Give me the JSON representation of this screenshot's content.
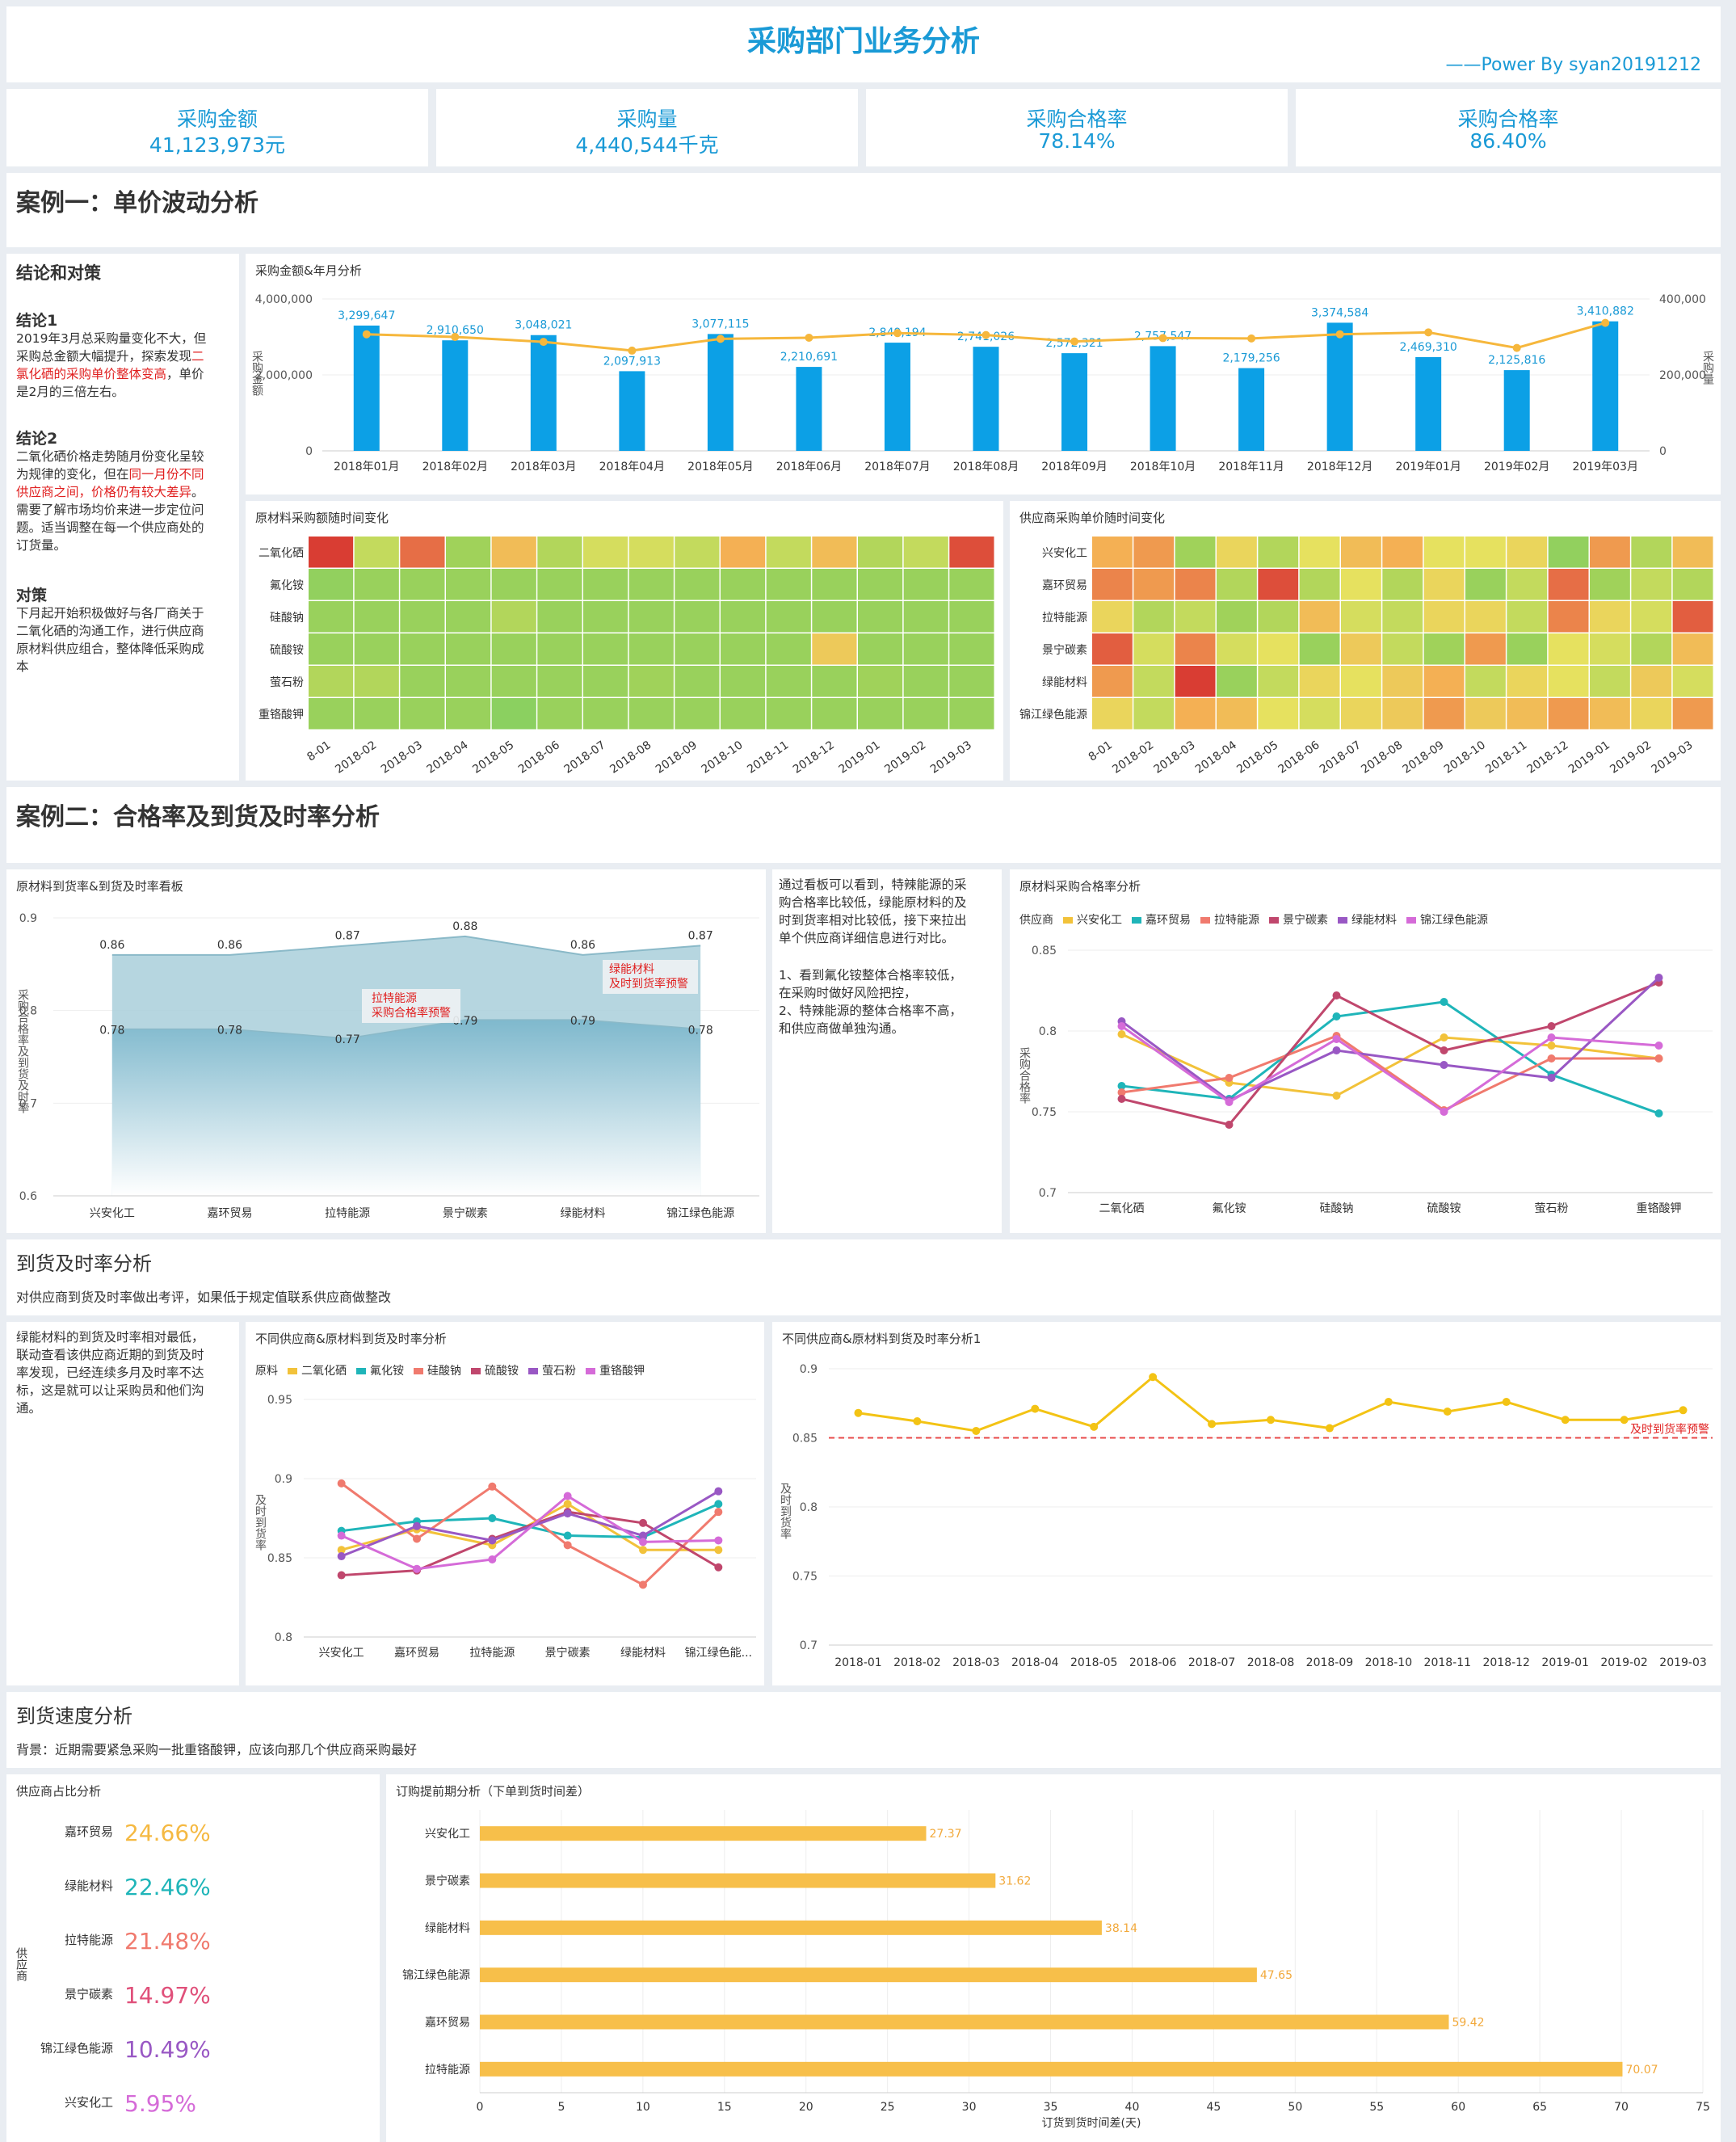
{
  "header": {
    "title": "采购部门业务分析",
    "subtitle": "——Power By syan20191212"
  },
  "kpis": [
    {
      "label": "采购金额",
      "value": "41,123,973元"
    },
    {
      "label": "采购量",
      "value": "4,440,544千克"
    },
    {
      "label": "采购合格率",
      "value": "78.14%"
    },
    {
      "label": "采购合格率",
      "value": "86.40%"
    }
  ],
  "case1": {
    "title": "案例一：单价波动分析"
  },
  "notes": {
    "title": "结论和对策",
    "c1_title": "结论1",
    "c1_a": "2019年3月总采购量变化不大，但",
    "c1_b": "采购总金额大幅提升，探索发现",
    "c1_b_red": "二",
    "c1_c_red": "氯化硒的采购单价整体变高",
    "c1_c": "，单价",
    "c1_d": "是2月的三倍左右。",
    "c2_title": "结论2",
    "c2_a": "二氧化硒价格走势随月份变化呈较",
    "c2_b": "为规律的变化，但在",
    "c2_b_red": "同一月份不同",
    "c2_c_red": "供应商之间，价格仍有较大差异",
    "c2_c": "。",
    "c2_d": "需要了解市场均价来进一步定位问",
    "c2_e": "题。适当调整在每一个供应商处的",
    "c2_f": "订货量。",
    "c3_title": "对策",
    "c3_a": "下月起开始积极做好与各厂商关于",
    "c3_b": "二氧化硒的沟通工作，进行供应商",
    "c3_c": "原材料供应组合，整体降低采购成",
    "c3_d": "本"
  },
  "chart_data": [
    {
      "id": "monthly",
      "type": "bar",
      "title": "采购金额&年月分析",
      "categories": [
        "2018年01月",
        "2018年02月",
        "2018年03月",
        "2018年04月",
        "2018年05月",
        "2018年06月",
        "2018年07月",
        "2018年08月",
        "2018年09月",
        "2018年10月",
        "2018年11月",
        "2018年12月",
        "2019年01月",
        "2019年02月",
        "2019年03月"
      ],
      "values": [
        3299647,
        2910650,
        3048021,
        2097913,
        3077115,
        2210691,
        2849194,
        2741026,
        2572321,
        2757547,
        2179256,
        3374584,
        2469310,
        2125816,
        3410882
      ],
      "value_labels": [
        "3,299,647",
        "2,910,650",
        "3,048,021",
        "2,097,913",
        "3,077,115",
        "2,210,691",
        "2,849,194",
        "2,741,026",
        "2,572,321",
        "2,757,547",
        "2,179,256",
        "3,374,584",
        "2,469,310",
        "2,125,816",
        "3,410,882"
      ],
      "line_values": [
        307000,
        300000,
        287000,
        264000,
        295000,
        298000,
        310000,
        305000,
        288000,
        297000,
        296000,
        307000,
        312000,
        271000,
        337000
      ],
      "ylabel": "采购金额",
      "y2label": "采购量",
      "yticks": [
        "4,000,000",
        "2,000,000",
        "0"
      ],
      "y2ticks": [
        "400,000",
        "200,000",
        "0"
      ],
      "ylim": [
        0,
        4000000
      ],
      "y2lim": [
        0,
        400000
      ]
    },
    {
      "id": "heat1",
      "type": "heatmap",
      "title": "原材料采购额随时间变化",
      "rows": [
        "二氧化硒",
        "氟化铵",
        "硅酸钠",
        "硫酸铵",
        "萤石粉",
        "重铬酸钾"
      ],
      "cols": [
        "2018-01",
        "2018-02",
        "2018-03",
        "2018-04",
        "2018-05",
        "2018-06",
        "2018-07",
        "2018-08",
        "2018-09",
        "2018-10",
        "2018-11",
        "2018-12",
        "2019-01",
        "2019-02",
        "2019-03"
      ],
      "xticks": [
        "8-01",
        "2018-02",
        "2018-03",
        "2018-04",
        "2018-05",
        "2018-06",
        "2018-07",
        "2018-08",
        "2018-09",
        "2018-10",
        "2018-11",
        "2018-12",
        "2019-01",
        "2019-02",
        "2019-03"
      ],
      "values": [
        [
          0.95,
          0.35,
          0.8,
          0.25,
          0.6,
          0.3,
          0.4,
          0.4,
          0.35,
          0.65,
          0.35,
          0.6,
          0.3,
          0.35,
          0.9
        ],
        [
          0.15,
          0.2,
          0.2,
          0.2,
          0.2,
          0.2,
          0.2,
          0.2,
          0.2,
          0.2,
          0.2,
          0.2,
          0.2,
          0.2,
          0.2
        ],
        [
          0.2,
          0.2,
          0.2,
          0.2,
          0.3,
          0.2,
          0.2,
          0.2,
          0.2,
          0.2,
          0.2,
          0.2,
          0.2,
          0.2,
          0.2
        ],
        [
          0.2,
          0.2,
          0.2,
          0.2,
          0.2,
          0.2,
          0.2,
          0.2,
          0.2,
          0.2,
          0.2,
          0.55,
          0.2,
          0.2,
          0.2
        ],
        [
          0.3,
          0.3,
          0.2,
          0.2,
          0.2,
          0.2,
          0.2,
          0.25,
          0.2,
          0.2,
          0.2,
          0.2,
          0.25,
          0.2,
          0.2
        ],
        [
          0.2,
          0.2,
          0.2,
          0.2,
          0.1,
          0.2,
          0.2,
          0.2,
          0.2,
          0.2,
          0.2,
          0.2,
          0.2,
          0.2,
          0.2
        ]
      ]
    },
    {
      "id": "heat2",
      "type": "heatmap",
      "title": "供应商采购单价随时间变化",
      "rows": [
        "兴安化工",
        "嘉环贸易",
        "拉特能源",
        "景宁碳素",
        "绿能材料",
        "锦江绿色能源"
      ],
      "cols": [
        "2018-01",
        "2018-02",
        "2018-03",
        "2018-04",
        "2018-05",
        "2018-06",
        "2018-07",
        "2018-08",
        "2018-09",
        "2018-10",
        "2018-11",
        "2018-12",
        "2019-01",
        "2019-02",
        "2019-03"
      ],
      "xticks": [
        "8-01",
        "2018-02",
        "2018-03",
        "2018-04",
        "2018-05",
        "2018-06",
        "2018-07",
        "2018-08",
        "2018-09",
        "2018-10",
        "2018-11",
        "2018-12",
        "2019-01",
        "2019-02",
        "2019-03"
      ],
      "values": [
        [
          0.65,
          0.7,
          0.25,
          0.5,
          0.3,
          0.45,
          0.6,
          0.65,
          0.45,
          0.45,
          0.5,
          0.15,
          0.7,
          0.3,
          0.6
        ],
        [
          0.75,
          0.7,
          0.75,
          0.3,
          0.9,
          0.3,
          0.45,
          0.3,
          0.5,
          0.2,
          0.35,
          0.8,
          0.25,
          0.35,
          0.3
        ],
        [
          0.5,
          0.3,
          0.35,
          0.25,
          0.3,
          0.6,
          0.4,
          0.35,
          0.5,
          0.5,
          0.35,
          0.75,
          0.5,
          0.4,
          0.85
        ],
        [
          0.85,
          0.4,
          0.75,
          0.4,
          0.45,
          0.2,
          0.55,
          0.35,
          0.25,
          0.7,
          0.2,
          0.45,
          0.4,
          0.3,
          0.6
        ],
        [
          0.7,
          0.35,
          0.95,
          0.2,
          0.35,
          0.5,
          0.45,
          0.55,
          0.65,
          0.35,
          0.5,
          0.45,
          0.35,
          0.55,
          0.4
        ],
        [
          0.5,
          0.35,
          0.65,
          0.6,
          0.45,
          0.4,
          0.5,
          0.55,
          0.7,
          0.55,
          0.6,
          0.7,
          0.6,
          0.5,
          0.7
        ]
      ]
    },
    {
      "id": "area",
      "type": "area",
      "title": "原材料到货率&到货及时率看板",
      "categories": [
        "兴安化工",
        "嘉环贸易",
        "拉特能源",
        "景宁碳素",
        "绿能材料",
        "锦江绿色能源"
      ],
      "series": [
        {
          "name": "到货率",
          "values": [
            0.86,
            0.86,
            0.87,
            0.88,
            0.86,
            0.87
          ],
          "labels": [
            "0.86",
            "0.86",
            "0.87",
            "0.88",
            "0.86",
            "0.87"
          ]
        },
        {
          "name": "到货及时率",
          "values": [
            0.78,
            0.78,
            0.77,
            0.79,
            0.79,
            0.78
          ],
          "labels": [
            "0.78",
            "0.78",
            "0.77",
            "0.79",
            "0.79",
            "0.78"
          ]
        }
      ],
      "yticks": [
        "0.9",
        "0.8",
        "0.7",
        "0.6"
      ],
      "ylim": [
        0.6,
        0.9
      ],
      "ylabel": "采购合格率及到货及时率",
      "annotations": [
        "拉特能源",
        "采购合格率预警",
        "绿能材料",
        "及时到货率预警"
      ]
    },
    {
      "id": "qual",
      "type": "line",
      "title": "原材料采购合格率分析",
      "legend_title": "供应商",
      "categories": [
        "二氧化硒",
        "氟化铵",
        "硅酸钠",
        "硫酸铵",
        "萤石粉",
        "重铬酸钾"
      ],
      "series": [
        {
          "name": "兴安化工",
          "color": "#f2c23a",
          "values": [
            0.798,
            0.768,
            0.76,
            0.796,
            0.791,
            0.783
          ]
        },
        {
          "name": "嘉环贸易",
          "color": "#1fb5b9",
          "values": [
            0.766,
            0.758,
            0.809,
            0.818,
            0.773,
            0.749
          ]
        },
        {
          "name": "拉特能源",
          "color": "#f07a6e",
          "values": [
            0.762,
            0.771,
            0.797,
            0.751,
            0.783,
            0.783
          ]
        },
        {
          "name": "景宁碳素",
          "color": "#c0476d",
          "values": [
            0.758,
            0.742,
            0.822,
            0.788,
            0.803,
            0.83
          ]
        },
        {
          "name": "绿能材料",
          "color": "#9958c4",
          "values": [
            0.806,
            0.757,
            0.788,
            0.779,
            0.771,
            0.833
          ]
        },
        {
          "name": "锦江绿色能源",
          "color": "#d56bd8",
          "values": [
            0.803,
            0.756,
            0.795,
            0.75,
            0.796,
            0.791
          ]
        }
      ],
      "yticks": [
        "0.85",
        "0.8",
        "0.75",
        "0.7"
      ],
      "ylim": [
        0.7,
        0.85
      ],
      "ylabel": "采购合格率"
    },
    {
      "id": "ontime",
      "type": "line",
      "title": "不同供应商&原材料到货及时率分析",
      "legend_title": "原料",
      "categories": [
        "兴安化工",
        "嘉环贸易",
        "拉特能源",
        "景宁碳素",
        "绿能材料",
        "锦江绿色能..."
      ],
      "series": [
        {
          "name": "二氧化硒",
          "color": "#f2c23a",
          "values": [
            0.855,
            0.868,
            0.858,
            0.884,
            0.855,
            0.855
          ]
        },
        {
          "name": "氟化铵",
          "color": "#1fb5b9",
          "values": [
            0.867,
            0.873,
            0.875,
            0.864,
            0.863,
            0.884
          ]
        },
        {
          "name": "硅酸钠",
          "color": "#f07a6e",
          "values": [
            0.897,
            0.862,
            0.895,
            0.858,
            0.833,
            0.879
          ]
        },
        {
          "name": "硫酸铵",
          "color": "#c0476d",
          "values": [
            0.839,
            0.842,
            0.862,
            0.879,
            0.872,
            0.844
          ]
        },
        {
          "name": "萤石粉",
          "color": "#9958c4",
          "values": [
            0.851,
            0.87,
            0.861,
            0.878,
            0.864,
            0.892
          ]
        },
        {
          "name": "重铬酸钾",
          "color": "#d56bd8",
          "values": [
            0.864,
            0.843,
            0.849,
            0.889,
            0.86,
            0.861
          ]
        }
      ],
      "yticks": [
        "0.95",
        "0.9",
        "0.85",
        "0.8"
      ],
      "ylim": [
        0.8,
        0.95
      ],
      "ylabel": "及时到货率"
    },
    {
      "id": "ontime2",
      "type": "line",
      "title": "不同供应商&原材料到货及时率分析1",
      "categories": [
        "2018-01",
        "2018-02",
        "2018-03",
        "2018-04",
        "2018-05",
        "2018-06",
        "2018-07",
        "2018-08",
        "2018-09",
        "2018-10",
        "2018-11",
        "2018-12",
        "2019-01",
        "2019-02",
        "2019-03"
      ],
      "values": [
        0.868,
        0.862,
        0.855,
        0.871,
        0.858,
        0.894,
        0.86,
        0.863,
        0.857,
        0.876,
        0.869,
        0.876,
        0.863,
        0.863,
        0.87
      ],
      "threshold": 0.85,
      "threshold_label": "及时到货率预警",
      "yticks": [
        "0.9",
        "0.85",
        "0.8",
        "0.75",
        "0.7"
      ],
      "ylim": [
        0.7,
        0.9
      ],
      "ylabel": "及时到货率"
    },
    {
      "id": "ratio",
      "type": "table",
      "title": "供应商占比分析",
      "ylabel": "供应商",
      "rows": [
        {
          "name": "嘉环贸易",
          "value": "24.66%",
          "color": "#f5b942"
        },
        {
          "name": "绿能材料",
          "value": "22.46%",
          "color": "#1fb5b9"
        },
        {
          "name": "拉特能源",
          "value": "21.48%",
          "color": "#f07a6e"
        },
        {
          "name": "景宁碳素",
          "value": "14.97%",
          "color": "#e0507a"
        },
        {
          "name": "锦江绿色能源",
          "value": "10.49%",
          "color": "#9958c4"
        },
        {
          "name": "兴安化工",
          "value": "5.95%",
          "color": "#d56bd8"
        }
      ]
    },
    {
      "id": "lead",
      "type": "bar",
      "orientation": "horizontal",
      "title": "订购提前期分析（下单到货时间差）",
      "categories": [
        "兴安化工",
        "景宁碳素",
        "绿能材料",
        "锦江绿色能源",
        "嘉环贸易",
        "拉特能源"
      ],
      "values": [
        27.37,
        31.62,
        38.14,
        47.65,
        59.42,
        70.07
      ],
      "value_labels": [
        "27.37",
        "31.62",
        "38.14",
        "47.65",
        "59.42",
        "70.07"
      ],
      "xlabel": "订货到货时间差(天)",
      "xticks": [
        "0",
        "5",
        "10",
        "15",
        "20",
        "25",
        "30",
        "35",
        "40",
        "45",
        "50",
        "55",
        "60",
        "65",
        "70",
        "75"
      ],
      "xlim": [
        0,
        75
      ]
    }
  ],
  "side": {
    "p1": [
      "通过看板可以看到，特辣能源的采",
      "购合格率比较低，绿能原材料的及",
      "时到货率相对比较低，接下来拉出",
      "单个供应商详细信息进行对比。"
    ],
    "p2": [
      "1、看到氟化铵整体合格率较低，",
      "在采购时做好风险把控，",
      "2、特辣能源的整体合格率不高，",
      "和供应商做单独沟通。"
    ]
  },
  "case2": {
    "title": "案例二：合格率及到货及时率分析"
  },
  "s3": {
    "title": "到货及时率分析",
    "desc": "对供应商到货及时率做出考评，如果低于规定值联系供应商做整改",
    "note": [
      "绿能材料的到货及时率相对最低，",
      "联动查看该供应商近期的到货及时",
      "率发现，已经连续多月及时率不达",
      "标，这是就可以让采购员和他们沟",
      "通。"
    ]
  },
  "s4": {
    "title": "到货速度分析",
    "desc": "背景：近期需要紧急采购一批重铬酸钾，应该向那几个供应商采购最好"
  }
}
